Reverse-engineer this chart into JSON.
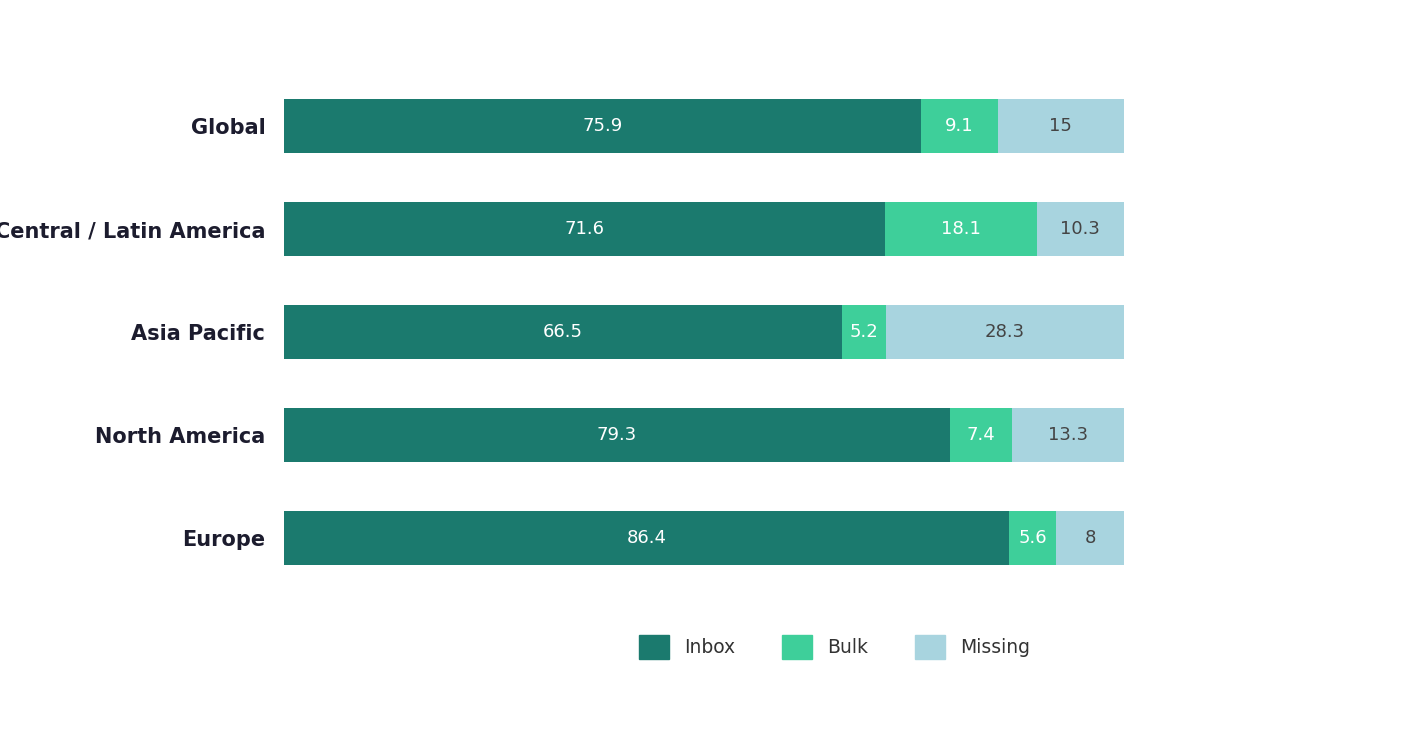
{
  "categories": [
    "Global",
    "Central / Latin America",
    "Asia Pacific",
    "North America",
    "Europe"
  ],
  "inbox": [
    75.9,
    71.6,
    66.5,
    79.3,
    86.4
  ],
  "bulk": [
    9.1,
    18.1,
    5.2,
    7.4,
    5.6
  ],
  "missing": [
    15.0,
    10.3,
    28.3,
    13.3,
    8.0
  ],
  "inbox_color": "#1b7a6e",
  "bulk_color": "#3ecf9a",
  "missing_color": "#a8d4df",
  "background_color": "#ffffff",
  "bar_height": 0.52,
  "category_fontsize": 15,
  "legend_fontsize": 13.5,
  "value_fontsize": 13,
  "text_color_light": "#ffffff",
  "text_color_dark": "#444444",
  "xlim": [
    0,
    115
  ],
  "missing_label_values": [
    "15",
    "10.3",
    "28.3",
    "13.3",
    "8"
  ]
}
